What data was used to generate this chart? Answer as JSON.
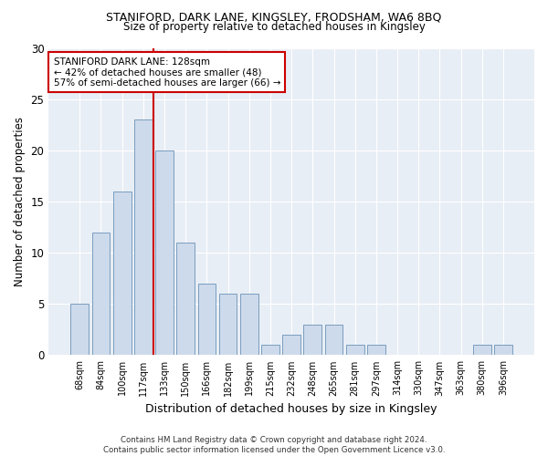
{
  "title1": "STANIFORD, DARK LANE, KINGSLEY, FRODSHAM, WA6 8BQ",
  "title2": "Size of property relative to detached houses in Kingsley",
  "xlabel": "Distribution of detached houses by size in Kingsley",
  "ylabel": "Number of detached properties",
  "categories": [
    "68sqm",
    "84sqm",
    "100sqm",
    "117sqm",
    "133sqm",
    "150sqm",
    "166sqm",
    "182sqm",
    "199sqm",
    "215sqm",
    "232sqm",
    "248sqm",
    "265sqm",
    "281sqm",
    "297sqm",
    "314sqm",
    "330sqm",
    "347sqm",
    "363sqm",
    "380sqm",
    "396sqm"
  ],
  "values": [
    5,
    12,
    16,
    23,
    20,
    11,
    7,
    6,
    6,
    1,
    2,
    3,
    3,
    1,
    1,
    0,
    0,
    0,
    0,
    1,
    1
  ],
  "bar_color": "#cddaeb",
  "bar_edgecolor": "#7a9dc0",
  "vline_color": "#cc0000",
  "annotation_line1": "STANIFORD DARK LANE: 128sqm",
  "annotation_line2": "← 42% of detached houses are smaller (48)",
  "annotation_line3": "57% of semi-detached houses are larger (66) →",
  "annotation_box_color": "#ffffff",
  "annotation_box_edgecolor": "#cc0000",
  "ylim": [
    0,
    30
  ],
  "yticks": [
    0,
    5,
    10,
    15,
    20,
    25,
    30
  ],
  "background_color": "#e8eef5",
  "footer": "Contains HM Land Registry data © Crown copyright and database right 2024.\nContains public sector information licensed under the Open Government Licence v3.0."
}
